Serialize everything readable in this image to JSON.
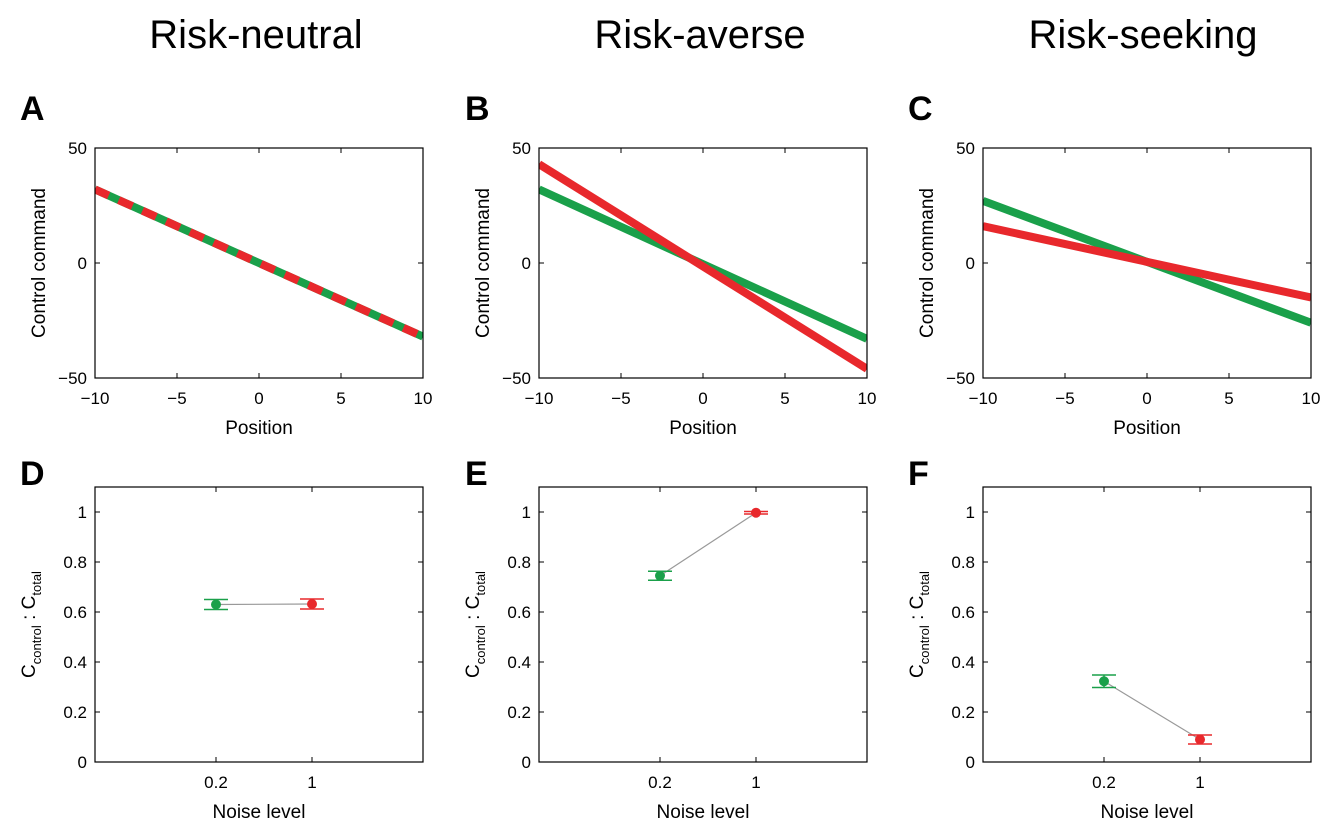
{
  "columns": [
    "Risk-neutral",
    "Risk-averse",
    "Risk-seeking"
  ],
  "colors": {
    "green": "#1aa04a",
    "red": "#e8282c",
    "connector": "#999999"
  },
  "line_axes": {
    "xlabel": "Position",
    "ylabel": "Control command",
    "xlim": [
      -10,
      10
    ],
    "ylim": [
      -50,
      50
    ],
    "xticks": [
      -10,
      -5,
      0,
      5,
      10
    ],
    "yticks": [
      -50,
      0,
      50
    ],
    "xtick_labels": [
      "−10",
      "−5",
      "0",
      "5",
      "10"
    ],
    "ytick_labels": [
      "−50",
      "0",
      "50"
    ]
  },
  "point_axes": {
    "xlabel": "Noise level",
    "ylabel_main": "C",
    "ylabel_sub1": "control",
    "ylabel_sep": " : C",
    "ylabel_sub2": "total",
    "ylim": [
      0,
      1.1
    ],
    "yticks": [
      0,
      0.2,
      0.4,
      0.6,
      0.8,
      1
    ],
    "ytick_labels": [
      "0",
      "0.2",
      "0.4",
      "0.6",
      "0.8",
      "1"
    ],
    "xtick_labels": [
      "0.2",
      "1"
    ]
  },
  "chart_data": [
    {
      "panel": "A",
      "type": "line",
      "column": 0,
      "series": [
        {
          "color": "green",
          "x": [
            -10,
            10
          ],
          "y": [
            32,
            -32
          ]
        },
        {
          "color": "red",
          "dashed": true,
          "x": [
            -10,
            10
          ],
          "y": [
            32,
            -32
          ]
        }
      ]
    },
    {
      "panel": "B",
      "type": "line",
      "column": 1,
      "series": [
        {
          "color": "green",
          "x": [
            -10,
            10
          ],
          "y": [
            32,
            -33
          ]
        },
        {
          "color": "red",
          "x": [
            -10,
            10
          ],
          "y": [
            43,
            -46
          ]
        }
      ]
    },
    {
      "panel": "C",
      "type": "line",
      "column": 2,
      "series": [
        {
          "color": "green",
          "x": [
            -10,
            10
          ],
          "y": [
            27,
            -26
          ]
        },
        {
          "color": "red",
          "x": [
            -10,
            10
          ],
          "y": [
            16,
            -15
          ]
        }
      ]
    },
    {
      "panel": "D",
      "type": "scatter",
      "column": 0,
      "categories": [
        "0.2",
        "1"
      ],
      "points": [
        {
          "color": "green",
          "value": 0.63,
          "err": 0.02
        },
        {
          "color": "red",
          "value": 0.632,
          "err": 0.02
        }
      ]
    },
    {
      "panel": "E",
      "type": "scatter",
      "column": 1,
      "categories": [
        "0.2",
        "1"
      ],
      "points": [
        {
          "color": "green",
          "value": 0.745,
          "err": 0.018
        },
        {
          "color": "red",
          "value": 0.997,
          "err": 0.005
        }
      ]
    },
    {
      "panel": "F",
      "type": "scatter",
      "column": 2,
      "categories": [
        "0.2",
        "1"
      ],
      "points": [
        {
          "color": "green",
          "value": 0.323,
          "err": 0.025
        },
        {
          "color": "red",
          "value": 0.09,
          "err": 0.018
        }
      ]
    }
  ]
}
